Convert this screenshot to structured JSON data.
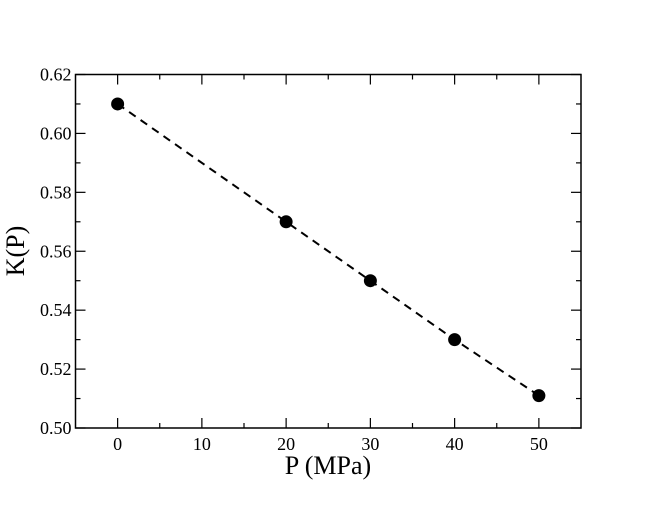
{
  "chart_data": {
    "type": "line",
    "title": "",
    "xlabel": "P (MPa)",
    "ylabel": "K(P)",
    "xlim": [
      -5,
      55
    ],
    "ylim": [
      0.5,
      0.62
    ],
    "x_ticks": [
      0,
      10,
      20,
      30,
      40,
      50
    ],
    "x_tick_labels": [
      "0",
      "10",
      "20",
      "30",
      "40",
      "50"
    ],
    "x_minor_step": 5,
    "y_ticks": [
      0.5,
      0.52,
      0.54,
      0.56,
      0.58,
      0.6,
      0.62
    ],
    "y_tick_labels": [
      "0.50",
      "0.52",
      "0.54",
      "0.56",
      "0.58",
      "0.60",
      "0.62"
    ],
    "y_minor_step": 0.01,
    "grid": false,
    "legend": null,
    "series": [
      {
        "name": "K(P)",
        "x": [
          0,
          20,
          30,
          40,
          50
        ],
        "values": [
          0.61,
          0.57,
          0.55,
          0.53,
          0.511
        ],
        "marker": "filled-circle",
        "line_style": "dashed",
        "color": "#000000"
      }
    ]
  }
}
